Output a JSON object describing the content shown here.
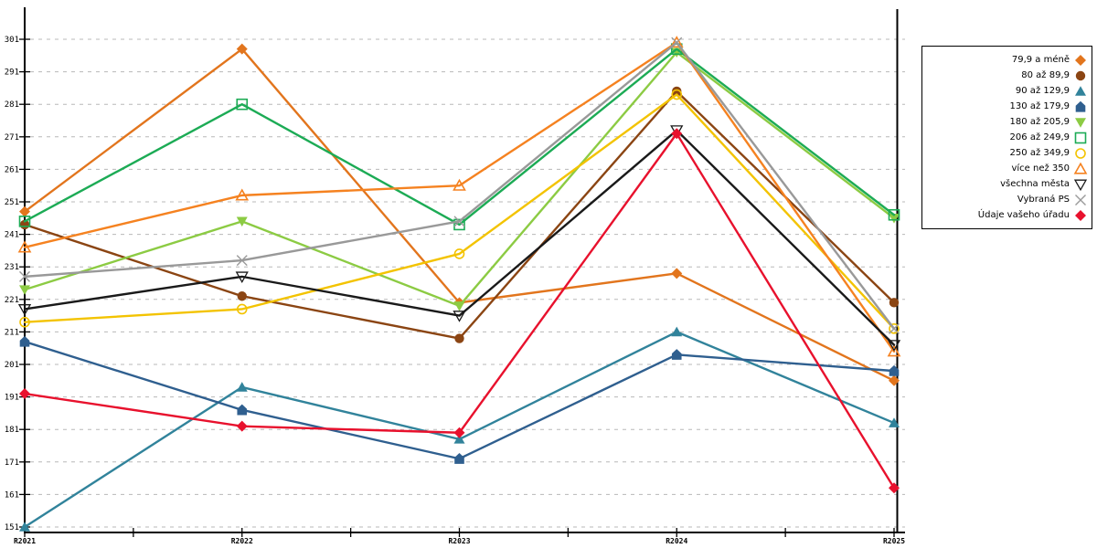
{
  "chart_data": {
    "type": "line",
    "title": "",
    "xlabel": "",
    "ylabel": "",
    "categories": [
      "R2021",
      "R2022",
      "R2023",
      "R2024",
      "R2025"
    ],
    "ylim": [
      151,
      301
    ],
    "ytick_step": 10,
    "grid": "horizontal-dashed",
    "legend_position": "right",
    "current_period_marker": "R2025",
    "series": [
      {
        "name": "79,9 a méně",
        "color": "#E2751D",
        "marker": "diamond",
        "values": [
          248,
          298,
          220,
          229,
          196
        ]
      },
      {
        "name": "80 až 89,9",
        "color": "#8B4513",
        "marker": "circle",
        "values": [
          244,
          222,
          209,
          285,
          220
        ]
      },
      {
        "name": "90 až 129,9",
        "color": "#31839B",
        "marker": "triangle",
        "values": [
          151,
          194,
          178,
          211,
          183
        ]
      },
      {
        "name": "130 až 179,9",
        "color": "#2F5F8F",
        "marker": "pentagon",
        "values": [
          208,
          187,
          172,
          204,
          199
        ]
      },
      {
        "name": "180 až 205,9",
        "color": "#8CCB43",
        "marker": "triangle-down",
        "values": [
          224,
          245,
          219,
          297,
          246
        ]
      },
      {
        "name": "206 až 249,9",
        "color": "#1CAB55",
        "marker": "square-open",
        "values": [
          245,
          281,
          244,
          298,
          247
        ]
      },
      {
        "name": "250 až 349,9",
        "color": "#F3C300",
        "marker": "circle-open",
        "values": [
          214,
          218,
          235,
          284,
          212
        ]
      },
      {
        "name": "více než 350",
        "color": "#F58220",
        "marker": "triangle-open",
        "values": [
          237,
          253,
          256,
          300,
          205
        ]
      },
      {
        "name": "všechna města",
        "color": "#1A1A1A",
        "marker": "triangle-down-open",
        "values": [
          218,
          228,
          216,
          273,
          207
        ]
      },
      {
        "name": "Vybraná PS",
        "color": "#999999",
        "marker": "x",
        "values": [
          228,
          233,
          245,
          300,
          212
        ]
      },
      {
        "name": "Údaje vašeho úřadu",
        "color": "#E8112D",
        "marker": "diamond",
        "values": [
          192,
          182,
          180,
          272,
          163
        ]
      }
    ]
  },
  "colors": {
    "grid": "#B8B8B8",
    "axis": "#000000",
    "background": "#FFFFFF"
  }
}
